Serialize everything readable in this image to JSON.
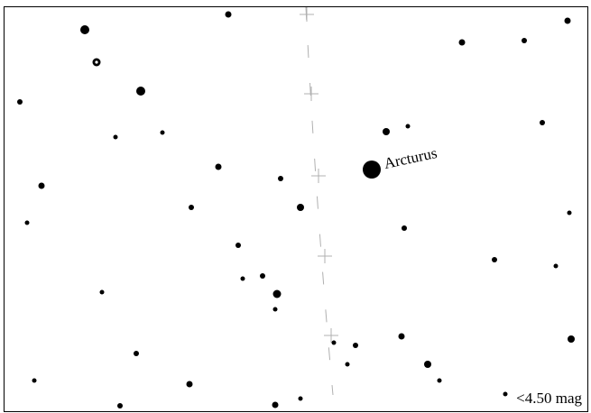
{
  "chart": {
    "magnitude_limit_label": "<4.50 mag",
    "colors": {
      "background": "#ffffff",
      "stars": "#000000",
      "grid": "#b0b0b0"
    },
    "labeled_stars": [
      {
        "name": "Arcturus"
      }
    ]
  }
}
